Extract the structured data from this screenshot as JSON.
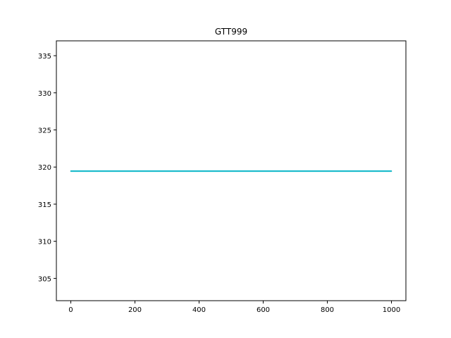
{
  "chart_data": {
    "type": "line",
    "title": "GTT999",
    "xlabel": "",
    "ylabel": "",
    "xlim": [
      -45,
      1045
    ],
    "ylim": [
      302,
      337
    ],
    "xticks": [
      0,
      200,
      400,
      600,
      800,
      1000
    ],
    "yticks": [
      305,
      310,
      315,
      320,
      325,
      330,
      335
    ],
    "grid": false,
    "legend": "none",
    "series_color": "#17becf",
    "overlay_color": "#7f7f7f",
    "series": [
      {
        "x": [
          0,
          1000
        ],
        "y": [
          319.45,
          319.45
        ]
      },
      {
        "x": [
          0,
          1000
        ],
        "y": [
          319.4,
          319.4
        ]
      },
      {
        "x": [
          0,
          1000
        ],
        "y": [
          319.5,
          319.5
        ]
      }
    ]
  }
}
